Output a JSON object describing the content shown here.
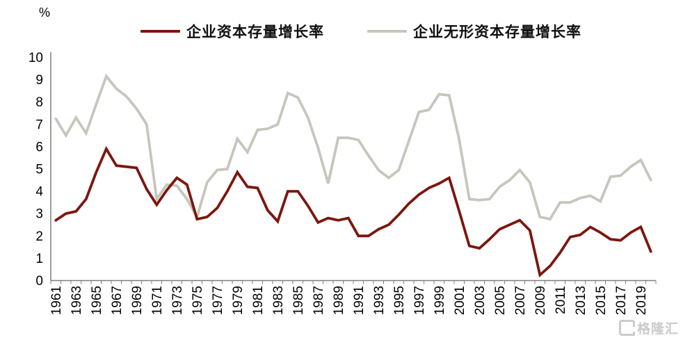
{
  "chart": {
    "percent_label": "%",
    "watermark": "格隆汇"
  },
  "chart_data": {
    "type": "line",
    "title": "",
    "ylabel": "%",
    "ylim": [
      0,
      10
    ],
    "yticks": [
      0,
      1,
      2,
      3,
      4,
      5,
      6,
      7,
      8,
      9,
      10
    ],
    "grid": false,
    "legend_position": "top",
    "x": [
      1961,
      1962,
      1963,
      1964,
      1965,
      1966,
      1967,
      1968,
      1969,
      1970,
      1971,
      1972,
      1973,
      1974,
      1975,
      1976,
      1977,
      1978,
      1979,
      1980,
      1981,
      1982,
      1983,
      1984,
      1985,
      1986,
      1987,
      1988,
      1989,
      1990,
      1991,
      1992,
      1993,
      1994,
      1995,
      1996,
      1997,
      1998,
      1999,
      2000,
      2001,
      2002,
      2003,
      2004,
      2005,
      2006,
      2007,
      2008,
      2009,
      2010,
      2011,
      2012,
      2013,
      2014,
      2015,
      2016,
      2017,
      2018,
      2019,
      2020
    ],
    "xtick_labels": [
      "1961",
      "1963",
      "1965",
      "1967",
      "1969",
      "1971",
      "1973",
      "1975",
      "1977",
      "1979",
      "1981",
      "1983",
      "1985",
      "1987",
      "1989",
      "1991",
      "1993",
      "1995",
      "1997",
      "1999",
      "2001",
      "2003",
      "2005",
      "2007",
      "2009",
      "2011",
      "2013",
      "2015",
      "2017",
      "2019"
    ],
    "series": [
      {
        "name": "企业资本存量增长率",
        "color": "#7B170E",
        "values": [
          2.7,
          3.0,
          3.1,
          3.65,
          4.85,
          5.9,
          5.15,
          5.1,
          5.05,
          4.1,
          3.4,
          4.05,
          4.6,
          4.3,
          2.75,
          2.85,
          3.25,
          4.0,
          4.85,
          4.2,
          4.15,
          3.15,
          2.65,
          4.0,
          4.0,
          3.35,
          2.6,
          2.8,
          2.7,
          2.8,
          2.0,
          2.0,
          2.3,
          2.5,
          2.95,
          3.45,
          3.85,
          4.15,
          4.35,
          4.6,
          3.1,
          1.55,
          1.45,
          1.85,
          2.3,
          2.5,
          2.7,
          2.25,
          0.25,
          0.65,
          1.25,
          1.95,
          2.05,
          2.4,
          2.15,
          1.85,
          1.8,
          2.15,
          2.4,
          1.3
        ]
      },
      {
        "name": "企业无形资本存量增长率",
        "color": "#C7C6BB",
        "values": [
          7.25,
          6.5,
          7.3,
          6.6,
          7.9,
          9.15,
          8.6,
          8.25,
          7.7,
          7.0,
          3.65,
          4.3,
          4.25,
          3.65,
          2.85,
          4.4,
          4.95,
          5.0,
          6.35,
          5.75,
          6.75,
          6.8,
          7.0,
          8.4,
          8.2,
          7.3,
          5.95,
          4.35,
          6.4,
          6.4,
          6.3,
          5.6,
          4.95,
          4.6,
          4.95,
          6.25,
          7.55,
          7.65,
          8.35,
          8.3,
          6.3,
          3.65,
          3.6,
          3.65,
          4.2,
          4.5,
          4.95,
          4.4,
          2.85,
          2.75,
          3.5,
          3.5,
          3.7,
          3.8,
          3.55,
          4.65,
          4.7,
          5.1,
          5.4,
          4.5
        ]
      }
    ],
    "axis_color": "#7F7F7F",
    "tick_label_color": "#000000"
  }
}
